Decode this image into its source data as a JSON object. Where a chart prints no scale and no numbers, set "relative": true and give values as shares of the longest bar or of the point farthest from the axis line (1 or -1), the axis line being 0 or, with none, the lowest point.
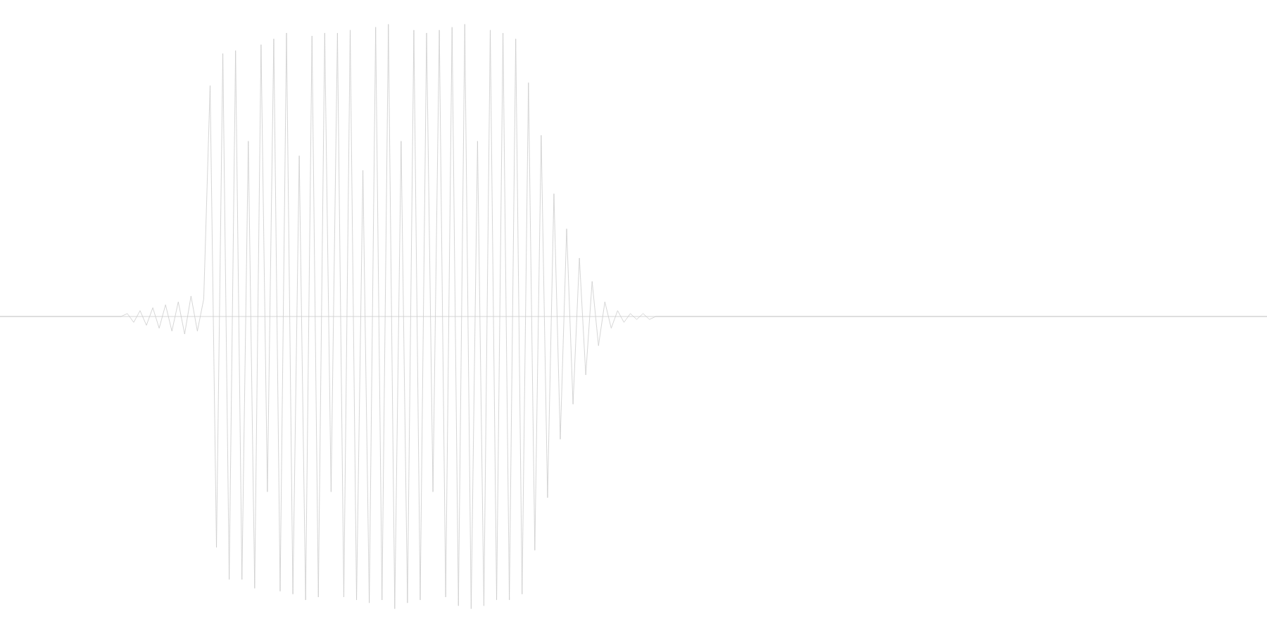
{
  "chart_data": {
    "type": "line",
    "relative": true,
    "color": "#cccccc",
    "categories": [
      null,
      null,
      null,
      null,
      null,
      null,
      null,
      null,
      null,
      null,
      null,
      null,
      null,
      null,
      null,
      null,
      null,
      null,
      null,
      null,
      null,
      null,
      null,
      null,
      null,
      null,
      null,
      null,
      null,
      null,
      null,
      null,
      null,
      null,
      null,
      null,
      null,
      null,
      null,
      null,
      null,
      null,
      null,
      null,
      null,
      null,
      null,
      null,
      null,
      null,
      null,
      null,
      null,
      null,
      null,
      null,
      null,
      null,
      null,
      null,
      null,
      null,
      null,
      null,
      null,
      null,
      null,
      null,
      null,
      null,
      null,
      null,
      null,
      null,
      null,
      null,
      null,
      null,
      null,
      null,
      null,
      null,
      null,
      null,
      null,
      null,
      null,
      null,
      null,
      null,
      null,
      null,
      null,
      null,
      null,
      null,
      null,
      null,
      null,
      null,
      null,
      null,
      null,
      null,
      null,
      null,
      null,
      null,
      null,
      null,
      null,
      null,
      null,
      null,
      null,
      null,
      null,
      null,
      null,
      null,
      null,
      null,
      null,
      null,
      null,
      null,
      null,
      null,
      null,
      null,
      null,
      null,
      null,
      null,
      null,
      null,
      null,
      null,
      null,
      null,
      null,
      null,
      null,
      null,
      null,
      null,
      null,
      null,
      null,
      null,
      null,
      null,
      null,
      null,
      null,
      null,
      null,
      null,
      null,
      null,
      null,
      null,
      null,
      null,
      null,
      null,
      null,
      null,
      null,
      null,
      null,
      null,
      null,
      null,
      null,
      null,
      null,
      null,
      null,
      null,
      null,
      null,
      null,
      null,
      null,
      null,
      null,
      null,
      null,
      null,
      null,
      null,
      null,
      null,
      null,
      null,
      null,
      null,
      null,
      null
    ],
    "values": [
      0,
      0,
      0,
      0,
      0,
      0,
      0,
      0,
      0,
      0,
      0,
      0,
      0,
      0,
      0,
      0,
      0,
      0,
      0,
      0,
      0.01,
      -0.02,
      0.02,
      -0.03,
      0.03,
      -0.04,
      0.04,
      -0.05,
      0.05,
      -0.06,
      0.07,
      -0.05,
      0.06,
      0.79,
      -0.79,
      0.9,
      -0.9,
      0.91,
      -0.9,
      0.6,
      -0.93,
      0.93,
      -0.6,
      0.95,
      -0.94,
      0.97,
      -0.95,
      0.55,
      -0.97,
      0.96,
      -0.96,
      0.97,
      -0.6,
      0.97,
      -0.96,
      0.98,
      -0.97,
      0.5,
      -0.98,
      0.99,
      -0.97,
      1,
      -1,
      0.6,
      -0.98,
      0.98,
      -0.97,
      0.97,
      -0.6,
      0.98,
      -0.96,
      0.99,
      -0.99,
      1,
      -1,
      0.6,
      -0.99,
      0.98,
      -0.97,
      0.97,
      -0.97,
      0.95,
      -0.95,
      0.8,
      -0.8,
      0.62,
      -0.62,
      0.42,
      -0.42,
      0.3,
      -0.3,
      0.2,
      -0.2,
      0.12,
      -0.1,
      0.05,
      -0.04,
      0.02,
      -0.02,
      0.01,
      -0.01,
      0.01,
      -0.01,
      0,
      0,
      0,
      0,
      0,
      0,
      0,
      0,
      0,
      0,
      0,
      0,
      0,
      0,
      0,
      0,
      0,
      0,
      0,
      0,
      0,
      0,
      0,
      0,
      0,
      0,
      0,
      0,
      0,
      0,
      0,
      0,
      0,
      0,
      0,
      0,
      0,
      0,
      0,
      0,
      0,
      0,
      0,
      0,
      0,
      0,
      0,
      0,
      0,
      0,
      0,
      0,
      0,
      0,
      0,
      0,
      0,
      0,
      0,
      0,
      0,
      0,
      0,
      0,
      0,
      0,
      0,
      0,
      0,
      0,
      0,
      0,
      0,
      0,
      0,
      0,
      0,
      0,
      0,
      0,
      0,
      0,
      0,
      0,
      0,
      0,
      0,
      0,
      0,
      0,
      0,
      0,
      0,
      0,
      0,
      0,
      0
    ]
  }
}
